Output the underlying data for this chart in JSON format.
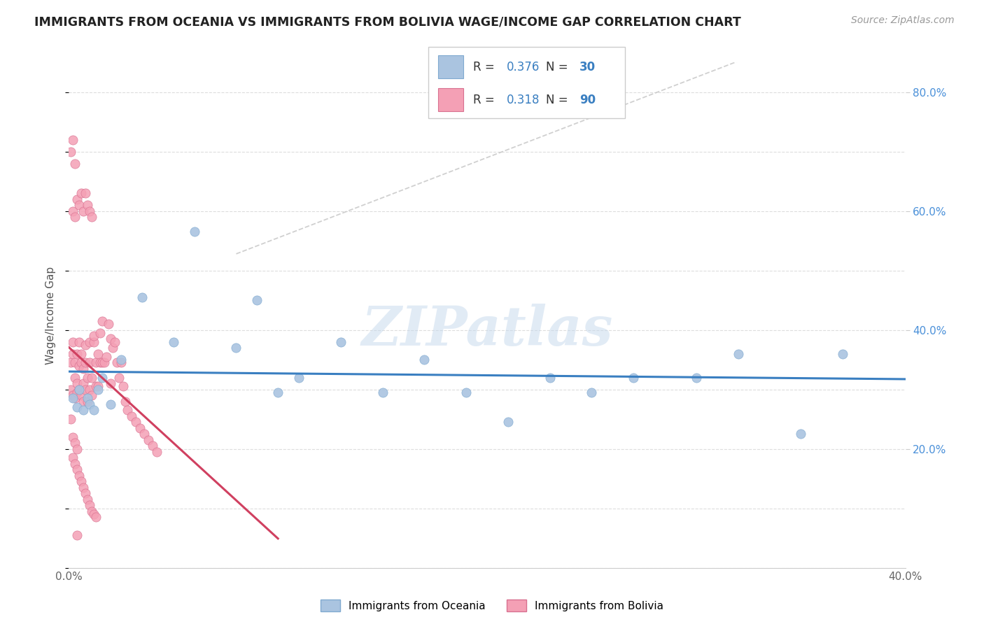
{
  "title": "IMMIGRANTS FROM OCEANIA VS IMMIGRANTS FROM BOLIVIA WAGE/INCOME GAP CORRELATION CHART",
  "source": "Source: ZipAtlas.com",
  "ylabel": "Wage/Income Gap",
  "x_min": 0.0,
  "x_max": 0.4,
  "y_min": 0.0,
  "y_max": 0.85,
  "color_oceania": "#aac4e0",
  "color_bolivia": "#f4a0b5",
  "color_oceania_edge": "#80aad0",
  "color_bolivia_edge": "#d87090",
  "trendline_color_oceania": "#3a7fc1",
  "trendline_color_bolivia": "#d04060",
  "trendline_dashed_color": "#c8c8c8",
  "watermark": "ZIPatlas",
  "background_color": "#ffffff",
  "grid_color": "#dddddd",
  "legend_R1": "0.376",
  "legend_N1": "30",
  "legend_R2": "0.318",
  "legend_N2": "90",
  "oceania_x": [
    0.002,
    0.004,
    0.005,
    0.007,
    0.009,
    0.01,
    0.012,
    0.014,
    0.016,
    0.02,
    0.025,
    0.035,
    0.05,
    0.06,
    0.08,
    0.09,
    0.1,
    0.11,
    0.13,
    0.15,
    0.17,
    0.19,
    0.21,
    0.23,
    0.25,
    0.27,
    0.3,
    0.32,
    0.35,
    0.37
  ],
  "oceania_y": [
    0.285,
    0.27,
    0.3,
    0.265,
    0.285,
    0.275,
    0.265,
    0.3,
    0.32,
    0.275,
    0.35,
    0.455,
    0.38,
    0.565,
    0.37,
    0.45,
    0.295,
    0.32,
    0.38,
    0.295,
    0.35,
    0.295,
    0.245,
    0.32,
    0.295,
    0.32,
    0.32,
    0.36,
    0.225,
    0.36
  ],
  "bolivia_x": [
    0.001,
    0.001,
    0.002,
    0.002,
    0.002,
    0.003,
    0.003,
    0.003,
    0.004,
    0.004,
    0.004,
    0.005,
    0.005,
    0.005,
    0.006,
    0.006,
    0.006,
    0.007,
    0.007,
    0.007,
    0.008,
    0.008,
    0.008,
    0.009,
    0.009,
    0.01,
    0.01,
    0.01,
    0.011,
    0.011,
    0.012,
    0.012,
    0.013,
    0.013,
    0.014,
    0.014,
    0.015,
    0.015,
    0.016,
    0.016,
    0.017,
    0.018,
    0.019,
    0.02,
    0.02,
    0.021,
    0.022,
    0.023,
    0.024,
    0.025,
    0.026,
    0.027,
    0.028,
    0.03,
    0.032,
    0.034,
    0.036,
    0.038,
    0.04,
    0.042,
    0.002,
    0.003,
    0.004,
    0.005,
    0.006,
    0.007,
    0.008,
    0.009,
    0.01,
    0.011,
    0.001,
    0.002,
    0.003,
    0.004,
    0.002,
    0.003,
    0.004,
    0.005,
    0.006,
    0.007,
    0.008,
    0.009,
    0.01,
    0.011,
    0.012,
    0.013,
    0.001,
    0.002,
    0.003,
    0.004
  ],
  "bolivia_y": [
    0.3,
    0.345,
    0.36,
    0.29,
    0.38,
    0.32,
    0.345,
    0.285,
    0.295,
    0.31,
    0.36,
    0.38,
    0.3,
    0.34,
    0.36,
    0.29,
    0.345,
    0.31,
    0.28,
    0.335,
    0.345,
    0.375,
    0.3,
    0.28,
    0.32,
    0.38,
    0.345,
    0.3,
    0.29,
    0.32,
    0.38,
    0.39,
    0.345,
    0.305,
    0.36,
    0.305,
    0.395,
    0.345,
    0.415,
    0.345,
    0.345,
    0.355,
    0.41,
    0.385,
    0.31,
    0.37,
    0.38,
    0.345,
    0.32,
    0.345,
    0.305,
    0.28,
    0.265,
    0.255,
    0.245,
    0.235,
    0.225,
    0.215,
    0.205,
    0.195,
    0.6,
    0.59,
    0.62,
    0.61,
    0.63,
    0.6,
    0.63,
    0.61,
    0.6,
    0.59,
    0.25,
    0.22,
    0.21,
    0.2,
    0.185,
    0.175,
    0.165,
    0.155,
    0.145,
    0.135,
    0.125,
    0.115,
    0.105,
    0.095,
    0.09,
    0.085,
    0.7,
    0.72,
    0.68,
    0.055
  ]
}
